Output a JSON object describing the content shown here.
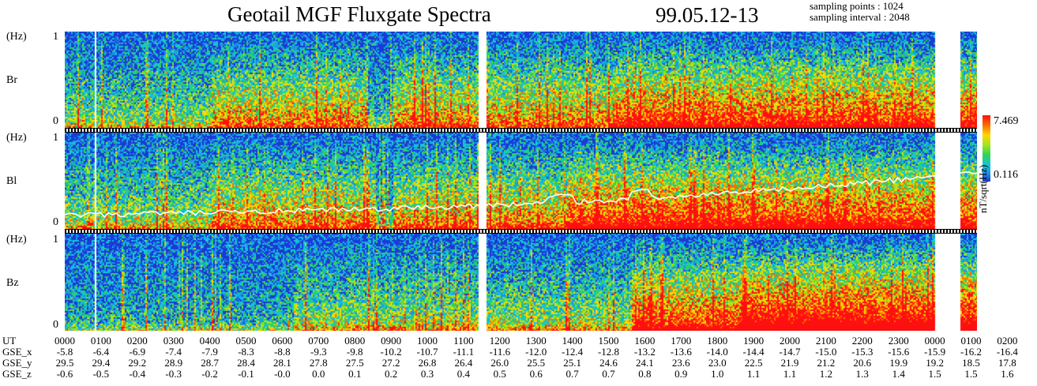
{
  "header": {
    "title": "Geotail MGF Fluxgate Spectra",
    "date": "99.05.12-13",
    "sampling_points": "sampling points : 1024",
    "sampling_interval": "sampling interval : 2048"
  },
  "chart_data": {
    "type": "heatmap",
    "title": "Geotail MGF Fluxgate Spectra",
    "panels": [
      {
        "name": "Br",
        "ylabel": "(Hz)",
        "ylim": [
          0,
          1
        ],
        "ytick_labels": [
          "1",
          "0"
        ]
      },
      {
        "name": "Bl",
        "ylabel": "(Hz)",
        "ylim": [
          0,
          1
        ],
        "ytick_labels": [
          "1",
          "0"
        ]
      },
      {
        "name": "Bz",
        "ylabel": "(Hz)",
        "ylim": [
          0,
          1
        ],
        "ytick_labels": [
          "1",
          "0"
        ]
      }
    ],
    "colorbar": {
      "max": "7.469",
      "min": "0.116",
      "unit": "nT/sqrt(Hz)",
      "colors": [
        "#1a3ad6",
        "#1a8fe8",
        "#14c6d8",
        "#2fd15a",
        "#9fe61a",
        "#ffd800",
        "#ff6a00",
        "#ff1010"
      ]
    },
    "x_rows": [
      {
        "label": "UT",
        "values": [
          "0000",
          "0100",
          "0200",
          "0300",
          "0400",
          "0500",
          "0600",
          "0700",
          "0800",
          "0900",
          "1000",
          "1100",
          "1200",
          "1300",
          "1400",
          "1500",
          "1600",
          "1700",
          "1800",
          "1900",
          "2000",
          "2100",
          "2200",
          "2300",
          "0000",
          "0100",
          "0200"
        ]
      },
      {
        "label": "GSE_x",
        "values": [
          "-5.8",
          "-6.4",
          "-6.9",
          "-7.4",
          "-7.9",
          "-8.3",
          "-8.8",
          "-9.3",
          "-9.8",
          "-10.2",
          "-10.7",
          "-11.1",
          "-11.6",
          "-12.0",
          "-12.4",
          "-12.8",
          "-13.2",
          "-13.6",
          "-14.0",
          "-14.4",
          "-14.7",
          "-15.0",
          "-15.3",
          "-15.6",
          "-15.9",
          "-16.2",
          "-16.4"
        ]
      },
      {
        "label": "GSE_y",
        "values": [
          "29.5",
          "29.4",
          "29.2",
          "28.9",
          "28.7",
          "28.4",
          "28.1",
          "27.8",
          "27.5",
          "27.2",
          "26.8",
          "26.4",
          "26.0",
          "25.5",
          "25.1",
          "24.6",
          "24.1",
          "23.6",
          "23.0",
          "22.5",
          "21.9",
          "21.2",
          "20.6",
          "19.9",
          "19.2",
          "18.5",
          "17.8"
        ]
      },
      {
        "label": "GSE_z",
        "values": [
          "-0.6",
          "-0.5",
          "-0.4",
          "-0.3",
          "-0.2",
          "-0.1",
          "-0.0",
          "0.0",
          "0.1",
          "0.2",
          "0.3",
          "0.4",
          "0.5",
          "0.6",
          "0.7",
          "0.7",
          "0.8",
          "0.9",
          "1.0",
          "1.1",
          "1.1",
          "1.2",
          "1.3",
          "1.4",
          "1.5",
          "1.5",
          "1.6"
        ]
      }
    ],
    "data_gaps_ut": [
      [
        "0050",
        "0052"
      ],
      [
        "1147",
        "1200"
      ],
      [
        "0047",
        "0130"
      ]
    ]
  }
}
